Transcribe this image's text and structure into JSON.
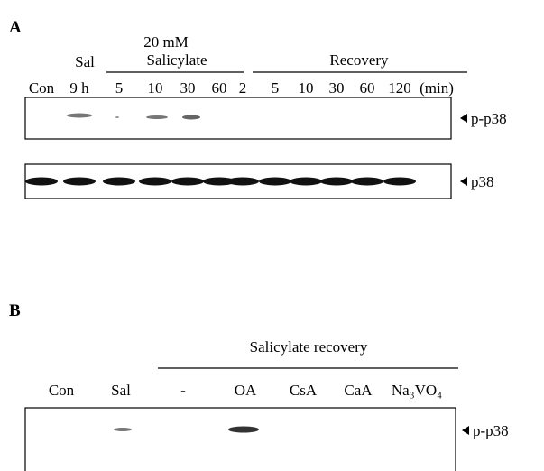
{
  "panel_a": {
    "label": "A",
    "header_sal": "Sal",
    "header_dose": "20 mM",
    "header_salicylate": "Salicylate",
    "header_recovery": "Recovery",
    "lanes": [
      "Con",
      "9 h",
      "5",
      "10",
      "30",
      "60",
      "2",
      "5",
      "10",
      "30",
      "60",
      "120",
      "(min)"
    ],
    "blots": [
      "p-p38",
      "p38"
    ]
  },
  "panel_b": {
    "label": "B",
    "header": "Salicylate recovery",
    "lanes": [
      "Con",
      "Sal",
      "-",
      "OA",
      "CsA",
      "CaA",
      "Na₃VO₄"
    ],
    "blots": [
      "p-p38"
    ]
  }
}
